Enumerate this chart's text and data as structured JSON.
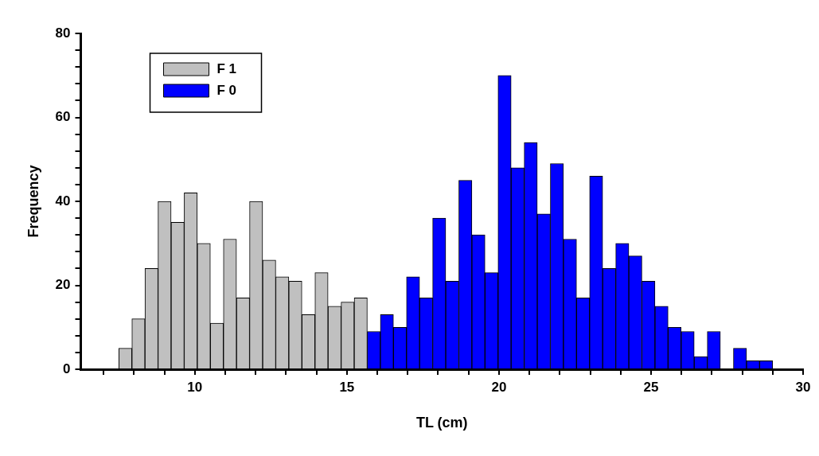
{
  "chart_data": {
    "type": "histogram",
    "xlabel": "TL (cm)",
    "ylabel": "Frequency",
    "bins": [
      7.5,
      7.93,
      8.36,
      8.79,
      9.22,
      9.65,
      10.08,
      10.51,
      10.94,
      11.37,
      11.8,
      12.23,
      12.66,
      13.09,
      13.52,
      13.95,
      14.38,
      14.81,
      15.24,
      15.67,
      16.1,
      16.53,
      16.96,
      17.39,
      17.82,
      18.25,
      18.68,
      19.11,
      19.54,
      19.97,
      20.4,
      20.83,
      21.26,
      21.69,
      22.12,
      22.55,
      22.98,
      23.41,
      23.84,
      24.27,
      24.7,
      25.13,
      25.56,
      25.99,
      26.42,
      26.85,
      27.28,
      27.71,
      28.14,
      28.57,
      29.0
    ],
    "series": [
      {
        "name": "F 1",
        "color": "#c0c0c0",
        "values": [
          5,
          12,
          24,
          40,
          35,
          42,
          30,
          11,
          31,
          17,
          40,
          26,
          22,
          21,
          13,
          23,
          15,
          16,
          17,
          null,
          null,
          null,
          null,
          null,
          null,
          null,
          null,
          null,
          null,
          null,
          null,
          null,
          null,
          null,
          null,
          null,
          null,
          null,
          null,
          null,
          null,
          null,
          null,
          null,
          null,
          null,
          null,
          null,
          null,
          null
        ]
      },
      {
        "name": "F 0",
        "color": "#0000ff",
        "values": [
          null,
          null,
          null,
          null,
          null,
          null,
          null,
          null,
          null,
          null,
          null,
          null,
          null,
          null,
          null,
          null,
          null,
          null,
          null,
          9,
          13,
          10,
          22,
          17,
          36,
          21,
          45,
          32,
          23,
          70,
          48,
          54,
          37,
          49,
          31,
          17,
          46,
          24,
          30,
          27,
          21,
          15,
          10,
          9,
          3,
          9,
          0,
          5,
          2,
          2
        ]
      }
    ],
    "xlim": [
      6.25,
      30
    ],
    "xticks": [
      {
        "value": 7,
        "label": null
      },
      {
        "value": 8,
        "label": null
      },
      {
        "value": 9,
        "label": null
      },
      10,
      {
        "value": 11,
        "label": null
      },
      {
        "value": 12,
        "label": null
      },
      {
        "value": 13,
        "label": null
      },
      {
        "value": 14,
        "label": null
      },
      15,
      {
        "value": 16,
        "label": null
      },
      {
        "value": 17,
        "label": null
      },
      {
        "value": 18,
        "label": null
      },
      {
        "value": 19,
        "label": null
      },
      20,
      {
        "value": 21,
        "label": null
      },
      {
        "value": 22,
        "label": null
      },
      {
        "value": 23,
        "label": null
      },
      {
        "value": 24,
        "label": null
      },
      25,
      {
        "value": 26,
        "label": null
      },
      {
        "value": 27,
        "label": null
      },
      {
        "value": 28,
        "label": null
      },
      {
        "value": 29,
        "label": null
      },
      30
    ],
    "ylim": [
      0,
      80
    ],
    "yticks": [
      0,
      {
        "value": 4,
        "label": null
      },
      {
        "value": 8,
        "label": null
      },
      {
        "value": 12,
        "label": null
      },
      {
        "value": 16,
        "label": null
      },
      20,
      {
        "value": 24,
        "label": null
      },
      {
        "value": 28,
        "label": null
      },
      {
        "value": 32,
        "label": null
      },
      {
        "value": 36,
        "label": null
      },
      40,
      {
        "value": 44,
        "label": null
      },
      {
        "value": 48,
        "label": null
      },
      {
        "value": 52,
        "label": null
      },
      {
        "value": 56,
        "label": null
      },
      60,
      {
        "value": 64,
        "label": null
      },
      {
        "value": 68,
        "label": null
      },
      {
        "value": 72,
        "label": null
      },
      {
        "value": 76,
        "label": null
      },
      80
    ],
    "grid": false,
    "legend": "top left"
  }
}
